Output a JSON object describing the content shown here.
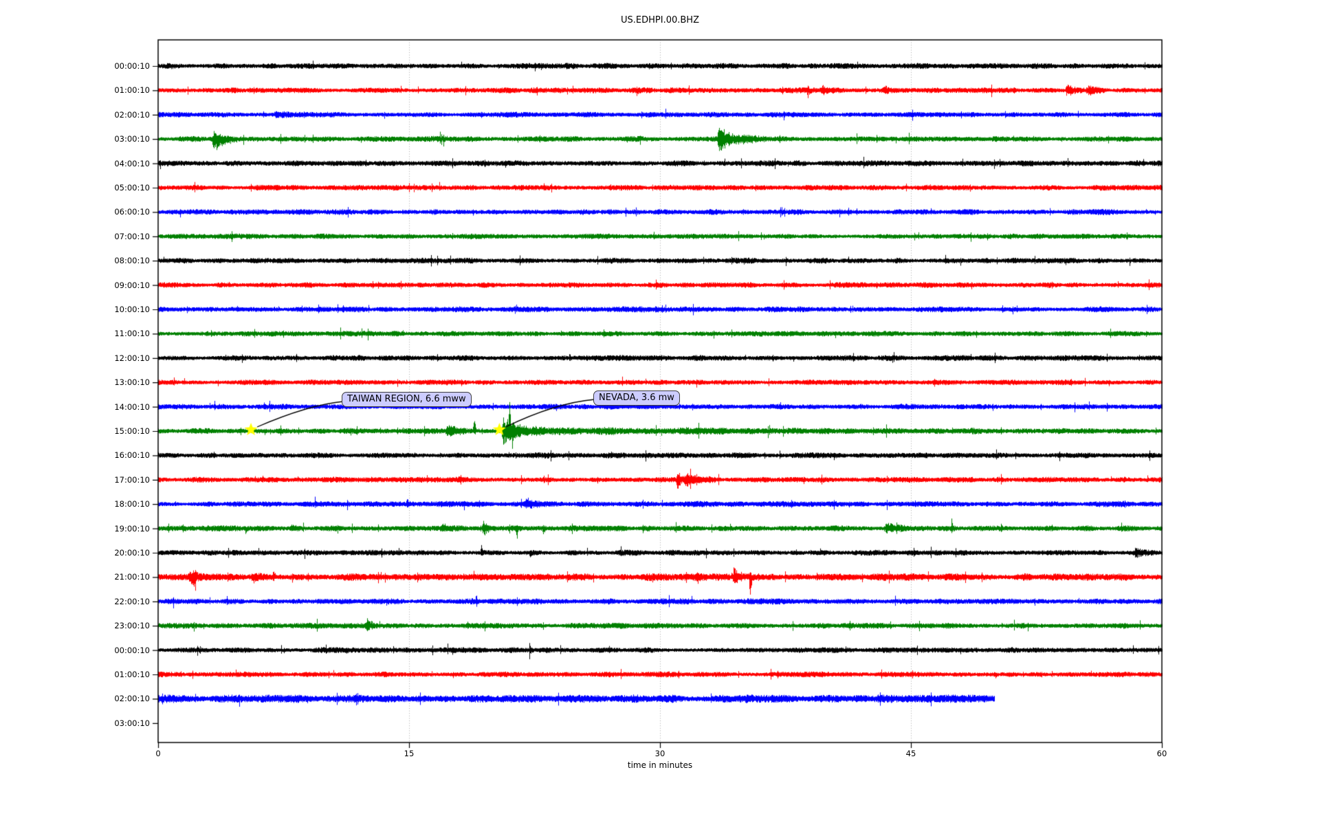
{
  "chart_data": {
    "type": "line",
    "subtype": "helicorder-dayplot",
    "title": "US.EDHPI.00.BHZ",
    "xlabel": "time in minutes",
    "x_range": [
      0,
      60
    ],
    "x_ticks": [
      "0",
      "15",
      "30",
      "45",
      "60"
    ],
    "x_tick_values": [
      0,
      15,
      30,
      45,
      60
    ],
    "grid_x_minutes": [
      15,
      30,
      45
    ],
    "grid_style": "dotted-gray-vertical",
    "color_cycle": [
      "#000000",
      "#ff0000",
      "#0000ff",
      "#008000"
    ],
    "rows": [
      {
        "label": "00:00:10",
        "color": "#000000",
        "base": 3.7,
        "end": 60,
        "events": []
      },
      {
        "label": "01:00:10",
        "color": "#ff0000",
        "base": 3.6,
        "end": 60,
        "events": [
          {
            "t": 38.8,
            "dur": 0.12,
            "up": 5,
            "down": 14
          },
          {
            "t": 39.6,
            "dur": 0.8,
            "up": 6,
            "down": 6
          },
          {
            "t": 43.3,
            "dur": 0.5,
            "up": 5,
            "down": 5
          },
          {
            "t": 54.2,
            "dur": 0.9,
            "up": 9,
            "down": 9
          },
          {
            "t": 55.5,
            "dur": 0.7,
            "up": 7,
            "down": 7
          }
        ]
      },
      {
        "label": "02:00:10",
        "color": "#0000ff",
        "base": 3.5,
        "end": 60,
        "events": [
          {
            "t": 6.9,
            "dur": 1.0,
            "up": 4,
            "down": 4
          }
        ]
      },
      {
        "label": "03:00:10",
        "color": "#008000",
        "base": 3.6,
        "end": 60,
        "events": [
          {
            "t": 3.2,
            "dur": 1.3,
            "up": 9,
            "down": 22
          },
          {
            "t": 33.4,
            "dur": 2.2,
            "up": 16,
            "down": 18
          }
        ]
      },
      {
        "label": "04:00:10",
        "color": "#000000",
        "base": 3.7,
        "end": 60,
        "events": []
      },
      {
        "label": "05:00:10",
        "color": "#ff0000",
        "base": 3.6,
        "end": 60,
        "events": []
      },
      {
        "label": "06:00:10",
        "color": "#0000ff",
        "base": 3.6,
        "end": 60,
        "events": []
      },
      {
        "label": "07:00:10",
        "color": "#008000",
        "base": 3.5,
        "end": 60,
        "events": []
      },
      {
        "label": "08:00:10",
        "color": "#000000",
        "base": 3.6,
        "end": 60,
        "events": []
      },
      {
        "label": "09:00:10",
        "color": "#ff0000",
        "base": 3.5,
        "end": 60,
        "events": []
      },
      {
        "label": "10:00:10",
        "color": "#0000ff",
        "base": 3.6,
        "end": 60,
        "events": []
      },
      {
        "label": "11:00:10",
        "color": "#008000",
        "base": 3.5,
        "end": 60,
        "events": []
      },
      {
        "label": "12:00:10",
        "color": "#000000",
        "base": 3.7,
        "end": 60,
        "events": []
      },
      {
        "label": "13:00:10",
        "color": "#ff0000",
        "base": 3.5,
        "end": 60,
        "events": []
      },
      {
        "label": "14:00:10",
        "color": "#0000ff",
        "base": 3.6,
        "end": 60,
        "events": []
      },
      {
        "label": "15:00:10",
        "color": "#008000",
        "base": 3.7,
        "end": 60,
        "events": [
          {
            "t": 17.2,
            "dur": 1.3,
            "up": 10,
            "down": 10
          },
          {
            "t": 18.85,
            "dur": 0.1,
            "up": 40,
            "down": 6
          },
          {
            "t": 20.5,
            "dur": 2.0,
            "up": 20,
            "down": 20
          },
          {
            "t": 20.95,
            "dur": 0.1,
            "up": 55,
            "down": 10
          },
          {
            "t": 21.12,
            "dur": 0.12,
            "up": 8,
            "down": 52
          },
          {
            "t": 22.4,
            "dur": 30,
            "up": 2.5,
            "down": 2.5
          }
        ]
      },
      {
        "label": "16:00:10",
        "color": "#000000",
        "base": 3.7,
        "end": 60,
        "events": []
      },
      {
        "label": "17:00:10",
        "color": "#ff0000",
        "base": 3.6,
        "end": 60,
        "events": [
          {
            "t": 31.0,
            "dur": 0.25,
            "up": 24,
            "down": 24
          },
          {
            "t": 31.4,
            "dur": 1.6,
            "up": 9,
            "down": 9
          }
        ]
      },
      {
        "label": "18:00:10",
        "color": "#0000ff",
        "base": 3.7,
        "end": 60,
        "events": [
          {
            "t": 14.85,
            "dur": 0.12,
            "up": 17,
            "down": 4
          },
          {
            "t": 21.9,
            "dur": 0.8,
            "up": 7,
            "down": 7
          }
        ]
      },
      {
        "label": "19:00:10",
        "color": "#008000",
        "base": 3.7,
        "end": 60,
        "events": [
          {
            "t": 5.2,
            "dur": 0.1,
            "up": 3,
            "down": 12
          },
          {
            "t": 7.8,
            "dur": 0.7,
            "up": 5,
            "down": 4
          },
          {
            "t": 16.9,
            "dur": 0.4,
            "up": 9,
            "down": 5
          },
          {
            "t": 19.3,
            "dur": 0.7,
            "up": 9,
            "down": 9
          },
          {
            "t": 21.4,
            "dur": 0.12,
            "up": 4,
            "down": 24
          },
          {
            "t": 23.0,
            "dur": 0.1,
            "up": 4,
            "down": 14
          },
          {
            "t": 43.4,
            "dur": 1.1,
            "up": 9,
            "down": 6
          },
          {
            "t": 47.4,
            "dur": 0.15,
            "up": 14,
            "down": 5
          }
        ]
      },
      {
        "label": "20:00:10",
        "color": "#000000",
        "base": 3.6,
        "end": 60,
        "events": [
          {
            "t": 19.3,
            "dur": 0.1,
            "up": 13,
            "down": 4
          },
          {
            "t": 22.2,
            "dur": 0.12,
            "up": 3,
            "down": 9
          },
          {
            "t": 58.3,
            "dur": 1.2,
            "up": 6,
            "down": 6
          }
        ]
      },
      {
        "label": "21:00:10",
        "color": "#ff0000",
        "base": 4.6,
        "end": 60,
        "events": [
          {
            "t": 1.8,
            "dur": 0.8,
            "up": 9,
            "down": 9
          },
          {
            "t": 2.05,
            "dur": 0.1,
            "up": 5,
            "down": 26
          },
          {
            "t": 5.6,
            "dur": 0.5,
            "up": 5,
            "down": 7
          },
          {
            "t": 6.85,
            "dur": 0.1,
            "up": 15,
            "down": 5
          },
          {
            "t": 32.2,
            "dur": 0.15,
            "up": 4,
            "down": 11
          },
          {
            "t": 34.3,
            "dur": 1.0,
            "up": 16,
            "down": 10
          },
          {
            "t": 35.35,
            "dur": 0.12,
            "up": 6,
            "down": 44
          }
        ]
      },
      {
        "label": "22:00:10",
        "color": "#0000ff",
        "base": 3.8,
        "end": 60,
        "events": []
      },
      {
        "label": "23:00:10",
        "color": "#008000",
        "base": 3.6,
        "end": 60,
        "events": [
          {
            "t": 12.4,
            "dur": 0.5,
            "up": 14,
            "down": 8
          }
        ]
      },
      {
        "label": "00:00:10",
        "color": "#000000",
        "base": 3.6,
        "end": 60,
        "events": [
          {
            "t": 22.2,
            "dur": 0.12,
            "up": 4,
            "down": 10
          }
        ]
      },
      {
        "label": "01:00:10",
        "color": "#ff0000",
        "base": 3.5,
        "end": 60,
        "events": [
          {
            "t": 50.0,
            "dur": 0.12,
            "up": 4,
            "down": 9
          }
        ]
      },
      {
        "label": "02:00:10",
        "color": "#0000ff",
        "base": 5.1,
        "end": 50,
        "events": []
      },
      {
        "label": "03:00:10",
        "color": "#008000",
        "base": 0,
        "end": 0,
        "empty": true,
        "events": []
      }
    ],
    "annotations": [
      {
        "text": "TAIWAN REGION, 6.6 mww",
        "target_row": 15,
        "target_minute": 5.55,
        "marker": "yellow-star"
      },
      {
        "text": "NEVADA, 3.6 mw",
        "target_row": 15,
        "target_minute": 20.4,
        "marker": "yellow-star"
      }
    ]
  }
}
